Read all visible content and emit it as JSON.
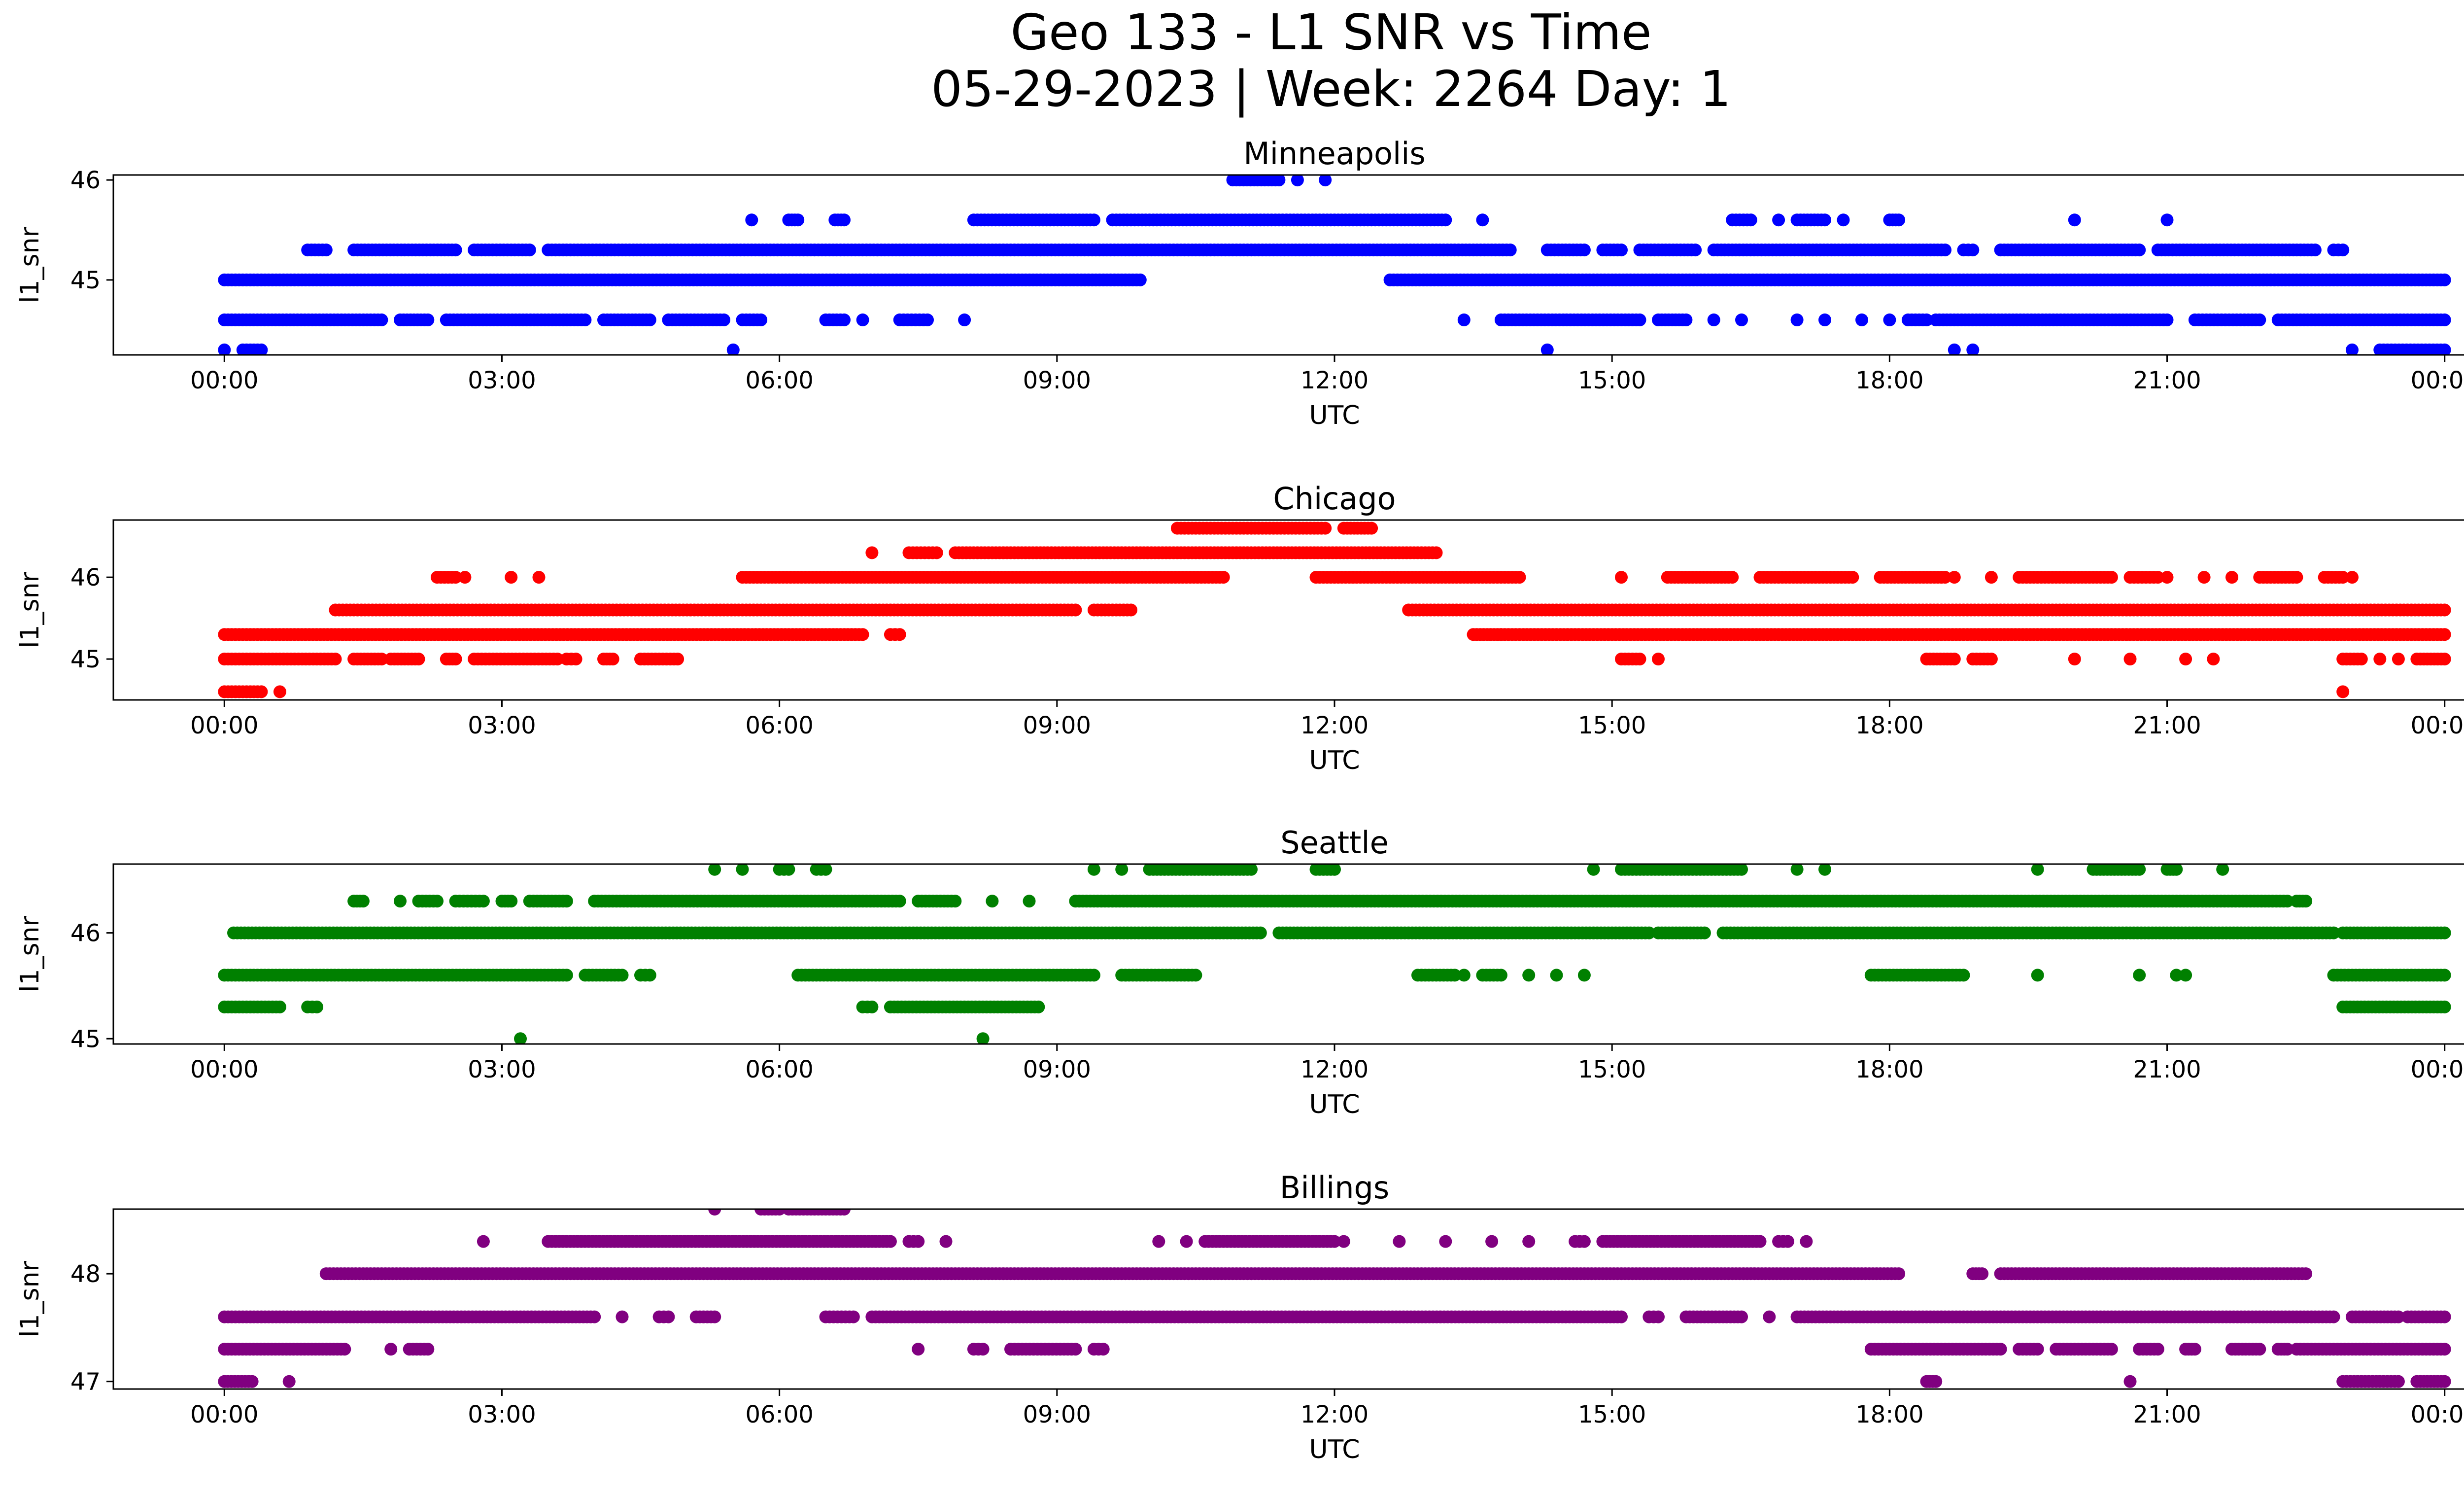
{
  "figure": {
    "title_line1": "Geo 133 - L1 SNR vs Time",
    "title_line2": "05-29-2023 | Week: 2264 Day: 1"
  },
  "x_ticks": [
    "00:00",
    "03:00",
    "06:00",
    "09:00",
    "12:00",
    "15:00",
    "18:00",
    "21:00",
    "00:00"
  ],
  "chart_data": [
    {
      "type": "scatter",
      "title": "Minneapolis",
      "xlabel": "UTC",
      "ylabel": "l1_snr",
      "color": "#0000ff",
      "xlim": [
        -1.2,
        25.2
      ],
      "ylim": [
        44.25,
        46.05
      ],
      "yticks": [
        45,
        46
      ],
      "grid": false,
      "levels": [
        {
          "y": 46.0,
          "segments": [
            [
              10.9,
              11.4
            ],
            [
              11.6,
              11.6
            ],
            [
              11.9,
              11.9
            ]
          ]
        },
        {
          "y": 45.6,
          "segments": [
            [
              5.7,
              5.7
            ],
            [
              6.1,
              6.2
            ],
            [
              6.6,
              6.7
            ],
            [
              8.1,
              9.4
            ],
            [
              9.6,
              13.2
            ],
            [
              13.6,
              13.6
            ],
            [
              16.3,
              16.5
            ],
            [
              16.8,
              16.8
            ],
            [
              17.0,
              17.3
            ],
            [
              17.5,
              17.5
            ],
            [
              18.0,
              18.1
            ],
            [
              20.0,
              20.0
            ],
            [
              21.0,
              21.0
            ]
          ]
        },
        {
          "y": 45.3,
          "segments": [
            [
              0.9,
              1.1
            ],
            [
              1.4,
              2.5
            ],
            [
              2.7,
              3.3
            ],
            [
              3.5,
              13.9
            ],
            [
              14.3,
              14.7
            ],
            [
              14.9,
              15.1
            ],
            [
              15.3,
              15.9
            ],
            [
              16.1,
              18.6
            ],
            [
              18.8,
              18.9
            ],
            [
              19.2,
              20.7
            ],
            [
              20.9,
              22.6
            ],
            [
              22.8,
              22.9
            ]
          ]
        },
        {
          "y": 45.0,
          "segments": [
            [
              0.0,
              9.9
            ],
            [
              12.6,
              24.0
            ]
          ]
        },
        {
          "y": 44.6,
          "segments": [
            [
              0.0,
              1.7
            ],
            [
              1.9,
              2.2
            ],
            [
              2.4,
              3.9
            ],
            [
              4.1,
              4.6
            ],
            [
              4.8,
              5.4
            ],
            [
              5.6,
              5.8
            ],
            [
              6.5,
              6.7
            ],
            [
              6.9,
              6.9
            ],
            [
              7.3,
              7.6
            ],
            [
              8.0,
              8.0
            ],
            [
              13.4,
              13.4
            ],
            [
              13.8,
              15.3
            ],
            [
              15.5,
              15.8
            ],
            [
              16.1,
              16.1
            ],
            [
              16.4,
              16.4
            ],
            [
              17.0,
              17.0
            ],
            [
              17.3,
              17.3
            ],
            [
              17.7,
              17.7
            ],
            [
              18.0,
              18.0
            ],
            [
              18.2,
              18.4
            ],
            [
              18.5,
              21.0
            ],
            [
              21.3,
              22.0
            ],
            [
              22.2,
              24.0
            ]
          ]
        },
        {
          "y": 44.3,
          "segments": [
            [
              0.0,
              0.0
            ],
            [
              0.2,
              0.4
            ],
            [
              5.5,
              5.5
            ],
            [
              14.3,
              14.3
            ],
            [
              18.7,
              18.7
            ],
            [
              18.9,
              18.9
            ],
            [
              23.0,
              23.0
            ],
            [
              23.3,
              24.0
            ]
          ]
        }
      ]
    },
    {
      "type": "scatter",
      "title": "Chicago",
      "xlabel": "UTC",
      "ylabel": "l1_snr",
      "color": "#ff0000",
      "xlim": [
        -1.2,
        25.2
      ],
      "ylim": [
        44.5,
        46.7
      ],
      "yticks": [
        45,
        46
      ],
      "grid": false,
      "levels": [
        {
          "y": 46.6,
          "segments": [
            [
              10.3,
              11.9
            ],
            [
              12.1,
              12.4
            ]
          ]
        },
        {
          "y": 46.3,
          "segments": [
            [
              7.0,
              7.0
            ],
            [
              7.4,
              7.7
            ],
            [
              7.9,
              13.1
            ]
          ]
        },
        {
          "y": 46.0,
          "segments": [
            [
              2.3,
              2.5
            ],
            [
              2.6,
              2.6
            ],
            [
              3.1,
              3.1
            ],
            [
              3.4,
              3.4
            ],
            [
              5.6,
              10.8
            ],
            [
              11.8,
              12.2
            ],
            [
              12.2,
              14.0
            ],
            [
              15.1,
              15.1
            ],
            [
              15.6,
              16.3
            ],
            [
              16.6,
              17.6
            ],
            [
              17.9,
              18.6
            ],
            [
              18.7,
              18.7
            ],
            [
              19.1,
              19.1
            ],
            [
              19.4,
              20.4
            ],
            [
              20.6,
              20.9
            ],
            [
              21.0,
              21.0
            ],
            [
              21.4,
              21.4
            ],
            [
              21.7,
              21.7
            ],
            [
              22.0,
              22.4
            ],
            [
              22.7,
              22.9
            ],
            [
              23.0,
              23.0
            ]
          ]
        },
        {
          "y": 45.6,
          "segments": [
            [
              1.2,
              9.2
            ],
            [
              9.4,
              9.8
            ],
            [
              12.8,
              24.0
            ]
          ]
        },
        {
          "y": 45.3,
          "segments": [
            [
              0.0,
              6.9
            ],
            [
              7.2,
              7.3
            ],
            [
              13.5,
              13.8
            ],
            [
              13.8,
              24.0
            ]
          ]
        },
        {
          "y": 45.0,
          "segments": [
            [
              0.0,
              1.2
            ],
            [
              1.4,
              1.7
            ],
            [
              1.8,
              2.1
            ],
            [
              2.4,
              2.5
            ],
            [
              2.7,
              3.6
            ],
            [
              3.7,
              3.8
            ],
            [
              4.1,
              4.2
            ],
            [
              4.5,
              4.9
            ],
            [
              15.1,
              15.3
            ],
            [
              15.5,
              15.5
            ],
            [
              18.4,
              18.7
            ],
            [
              18.9,
              19.1
            ],
            [
              20.0,
              20.0
            ],
            [
              20.6,
              20.6
            ],
            [
              21.2,
              21.2
            ],
            [
              21.5,
              21.5
            ],
            [
              22.9,
              23.1
            ],
            [
              23.3,
              23.3
            ],
            [
              23.5,
              23.5
            ],
            [
              23.7,
              24.0
            ]
          ]
        },
        {
          "y": 44.6,
          "segments": [
            [
              0.0,
              0.4
            ],
            [
              0.6,
              0.6
            ],
            [
              22.9,
              22.9
            ]
          ]
        }
      ]
    },
    {
      "type": "scatter",
      "title": "Seattle",
      "xlabel": "UTC",
      "ylabel": "l1_snr",
      "color": "#008000",
      "xlim": [
        -1.2,
        25.2
      ],
      "ylim": [
        44.95,
        46.65
      ],
      "yticks": [
        45,
        46
      ],
      "grid": false,
      "levels": [
        {
          "y": 46.6,
          "segments": [
            [
              5.3,
              5.3
            ],
            [
              5.6,
              5.6
            ],
            [
              6.0,
              6.1
            ],
            [
              6.4,
              6.5
            ],
            [
              9.4,
              9.4
            ],
            [
              9.7,
              9.7
            ],
            [
              10.0,
              11.1
            ],
            [
              11.8,
              12.0
            ],
            [
              14.8,
              14.8
            ],
            [
              15.1,
              16.4
            ],
            [
              17.0,
              17.0
            ],
            [
              17.3,
              17.3
            ],
            [
              19.6,
              19.6
            ],
            [
              20.2,
              20.7
            ],
            [
              21.0,
              21.1
            ],
            [
              21.6,
              21.6
            ]
          ]
        },
        {
          "y": 46.3,
          "segments": [
            [
              1.4,
              1.5
            ],
            [
              1.9,
              1.9
            ],
            [
              2.1,
              2.3
            ],
            [
              2.5,
              2.8
            ],
            [
              3.0,
              3.1
            ],
            [
              3.3,
              3.7
            ],
            [
              4.0,
              7.3
            ],
            [
              7.5,
              7.9
            ],
            [
              8.3,
              8.3
            ],
            [
              8.7,
              8.7
            ],
            [
              9.2,
              22.3
            ],
            [
              22.4,
              22.5
            ]
          ]
        },
        {
          "y": 46.0,
          "segments": [
            [
              0.1,
              11.2
            ],
            [
              11.4,
              15.4
            ],
            [
              15.5,
              16.0
            ],
            [
              16.2,
              22.8
            ],
            [
              22.9,
              24.0
            ]
          ]
        },
        {
          "y": 45.6,
          "segments": [
            [
              0.0,
              3.7
            ],
            [
              3.9,
              4.3
            ],
            [
              4.5,
              4.6
            ],
            [
              6.2,
              9.4
            ],
            [
              9.7,
              10.5
            ],
            [
              12.9,
              13.3
            ],
            [
              13.4,
              13.4
            ],
            [
              13.6,
              13.8
            ],
            [
              14.1,
              14.1
            ],
            [
              14.4,
              14.4
            ],
            [
              14.7,
              14.7
            ],
            [
              17.8,
              18.8
            ],
            [
              19.6,
              19.6
            ],
            [
              20.7,
              20.7
            ],
            [
              21.1,
              21.1
            ],
            [
              21.2,
              21.2
            ],
            [
              22.8,
              24.0
            ]
          ]
        },
        {
          "y": 45.3,
          "segments": [
            [
              0.0,
              0.6
            ],
            [
              0.9,
              1.0
            ],
            [
              6.9,
              7.0
            ],
            [
              7.2,
              8.8
            ],
            [
              22.9,
              24.0
            ]
          ]
        },
        {
          "y": 45.0,
          "segments": [
            [
              3.2,
              3.2
            ],
            [
              8.2,
              8.2
            ]
          ]
        }
      ]
    },
    {
      "type": "scatter",
      "title": "Billings",
      "xlabel": "UTC",
      "ylabel": "l1_snr",
      "color": "#800080",
      "xlim": [
        -1.2,
        25.2
      ],
      "ylim": [
        46.93,
        48.6
      ],
      "yticks": [
        47,
        48
      ],
      "grid": false,
      "levels": [
        {
          "y": 48.6,
          "segments": [
            [
              5.3,
              5.3
            ],
            [
              5.8,
              6.0
            ],
            [
              6.1,
              6.7
            ]
          ]
        },
        {
          "y": 48.3,
          "segments": [
            [
              2.8,
              2.8
            ],
            [
              3.5,
              7.2
            ],
            [
              7.4,
              7.5
            ],
            [
              7.8,
              7.8
            ],
            [
              10.1,
              10.1
            ],
            [
              10.4,
              10.4
            ],
            [
              10.6,
              12.0
            ],
            [
              12.1,
              12.1
            ],
            [
              12.7,
              12.7
            ],
            [
              13.2,
              13.2
            ],
            [
              13.7,
              13.7
            ],
            [
              14.1,
              14.1
            ],
            [
              14.6,
              14.7
            ],
            [
              14.9,
              16.6
            ],
            [
              16.8,
              16.9
            ],
            [
              17.1,
              17.1
            ]
          ]
        },
        {
          "y": 48.0,
          "segments": [
            [
              1.1,
              18.1
            ],
            [
              18.9,
              19.0
            ],
            [
              19.2,
              22.5
            ]
          ]
        },
        {
          "y": 47.6,
          "segments": [
            [
              0.0,
              4.0
            ],
            [
              4.3,
              4.3
            ],
            [
              4.7,
              4.8
            ],
            [
              5.1,
              5.3
            ],
            [
              6.5,
              6.8
            ],
            [
              7.0,
              15.1
            ],
            [
              15.4,
              15.5
            ],
            [
              15.8,
              16.4
            ],
            [
              16.7,
              16.7
            ],
            [
              17.0,
              22.8
            ],
            [
              23.0,
              23.5
            ],
            [
              23.6,
              24.0
            ]
          ]
        },
        {
          "y": 47.3,
          "segments": [
            [
              0.0,
              1.3
            ],
            [
              1.8,
              1.8
            ],
            [
              2.0,
              2.2
            ],
            [
              7.5,
              7.5
            ],
            [
              8.1,
              8.2
            ],
            [
              8.5,
              9.2
            ],
            [
              9.4,
              9.5
            ],
            [
              17.8,
              19.2
            ],
            [
              19.4,
              19.6
            ],
            [
              19.8,
              20.4
            ],
            [
              20.7,
              20.9
            ],
            [
              21.2,
              21.3
            ],
            [
              21.7,
              22.0
            ],
            [
              22.2,
              22.3
            ],
            [
              22.4,
              24.0
            ]
          ]
        },
        {
          "y": 47.0,
          "segments": [
            [
              0.0,
              0.3
            ],
            [
              0.7,
              0.7
            ],
            [
              18.4,
              18.5
            ],
            [
              20.6,
              20.6
            ],
            [
              22.9,
              23.5
            ],
            [
              23.7,
              24.0
            ]
          ]
        }
      ]
    }
  ]
}
